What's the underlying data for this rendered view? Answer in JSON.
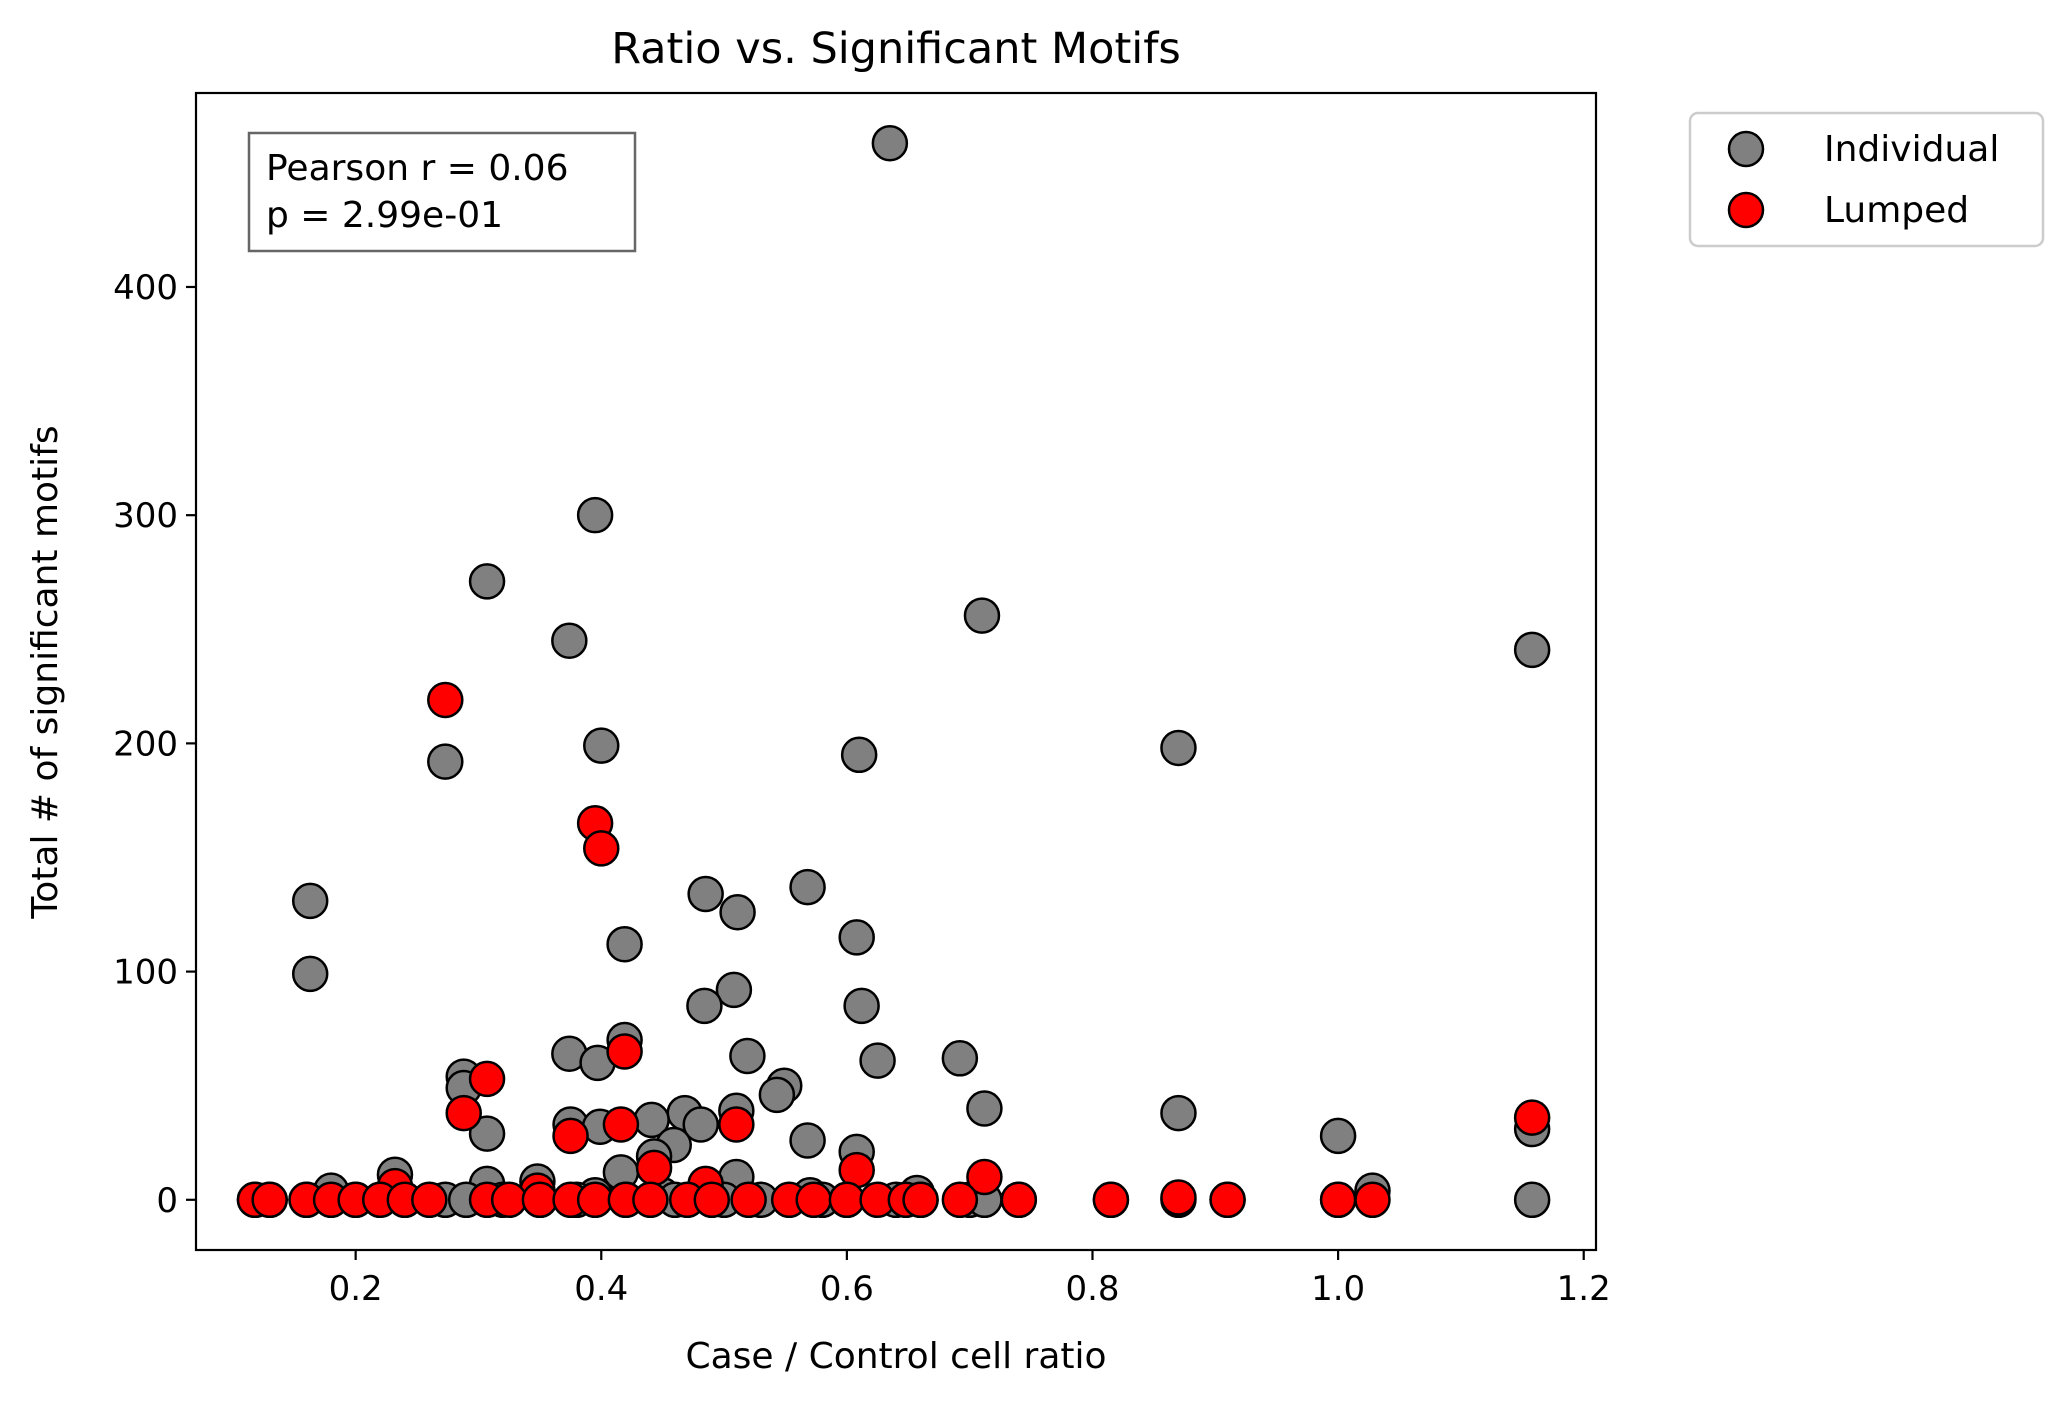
{
  "chart_data": {
    "type": "scatter",
    "title": "Ratio vs. Significant Motifs",
    "xlabel": "Case / Control cell ratio",
    "ylabel": "Total # of significant motifs",
    "xlim": [
      0.07,
      1.21
    ],
    "ylim": [
      -22,
      485
    ],
    "xticks": [
      0.2,
      0.4,
      0.6,
      0.8,
      1.0,
      1.2
    ],
    "xtick_labels": [
      "0.2",
      "0.4",
      "0.6",
      "0.8",
      "1.0",
      "1.2"
    ],
    "yticks": [
      0,
      100,
      200,
      300,
      400
    ],
    "ytick_labels": [
      "0",
      "100",
      "200",
      "300",
      "400"
    ],
    "grid": false,
    "legend_position": "outside-top-right",
    "annotation": {
      "lines": [
        "Pearson r = 0.06",
        "p = 2.99e-01"
      ],
      "position": "top-left"
    },
    "series": [
      {
        "name": "Individual",
        "color": "#808080",
        "edgecolor": "#000000",
        "x": [
          0.635,
          0.395,
          0.307,
          0.71,
          1.158,
          0.374,
          0.4,
          0.61,
          0.87,
          0.273,
          0.163,
          0.163,
          0.568,
          0.485,
          0.511,
          0.608,
          0.419,
          0.508,
          0.484,
          0.612,
          0.419,
          0.374,
          0.397,
          0.519,
          0.625,
          0.692,
          0.288,
          0.288,
          0.549,
          0.543,
          0.712,
          0.87,
          0.468,
          0.441,
          0.481,
          0.51,
          0.375,
          0.399,
          0.307,
          1.158,
          0.459,
          0.568,
          1.0,
          0.608,
          0.443,
          0.232,
          0.416,
          0.51,
          0.348,
          0.307,
          1.028,
          0.18,
          0.657,
          0.57,
          0.45,
          0.395,
          0.118,
          0.13,
          0.16,
          0.2,
          0.22,
          0.24,
          0.273,
          0.29,
          0.32,
          0.35,
          0.38,
          0.42,
          0.46,
          0.5,
          0.53,
          0.58,
          0.6,
          0.64,
          0.66,
          0.7,
          0.712,
          0.74,
          0.815,
          0.87,
          0.91,
          1.0,
          1.158
        ],
        "y": [
          463,
          300,
          271,
          256,
          241,
          245,
          199,
          195,
          198,
          192,
          131,
          99,
          137,
          134,
          126,
          115,
          112,
          92,
          85,
          85,
          70,
          64,
          60,
          63,
          61,
          62,
          54,
          49,
          50,
          46,
          40,
          38,
          38,
          35,
          33,
          39,
          33,
          32,
          29,
          31,
          24,
          26,
          28,
          21,
          19,
          11,
          12,
          10,
          8,
          7,
          4,
          4,
          3,
          2,
          2,
          2,
          0,
          0,
          0,
          0,
          0,
          0,
          0,
          0,
          0,
          0,
          0,
          0,
          0,
          0,
          0,
          0,
          0,
          0,
          0,
          0,
          0,
          0,
          0,
          0,
          0,
          0,
          0
        ]
      },
      {
        "name": "Lumped",
        "color": "#ff0000",
        "edgecolor": "#000000",
        "x": [
          0.273,
          0.395,
          0.4,
          0.419,
          0.307,
          0.288,
          0.416,
          0.51,
          0.375,
          1.158,
          0.443,
          0.608,
          0.712,
          0.485,
          0.232,
          0.348,
          0.87,
          0.118,
          0.13,
          0.16,
          0.18,
          0.2,
          0.22,
          0.24,
          0.26,
          0.307,
          0.325,
          0.35,
          0.375,
          0.395,
          0.42,
          0.44,
          0.47,
          0.49,
          0.52,
          0.553,
          0.573,
          0.6,
          0.625,
          0.648,
          0.66,
          0.692,
          0.74,
          0.815,
          0.91,
          1.0,
          1.028
        ],
        "y": [
          219,
          165,
          154,
          65,
          53,
          38,
          33,
          33,
          28,
          36,
          14,
          13,
          10,
          7,
          6,
          4,
          1,
          0,
          0,
          0,
          0,
          0,
          0,
          0,
          0,
          0,
          0,
          0,
          0,
          0,
          0,
          0,
          0,
          0,
          0,
          0,
          0,
          0,
          0,
          0,
          0,
          0,
          0,
          0,
          0,
          0,
          0
        ]
      }
    ]
  }
}
